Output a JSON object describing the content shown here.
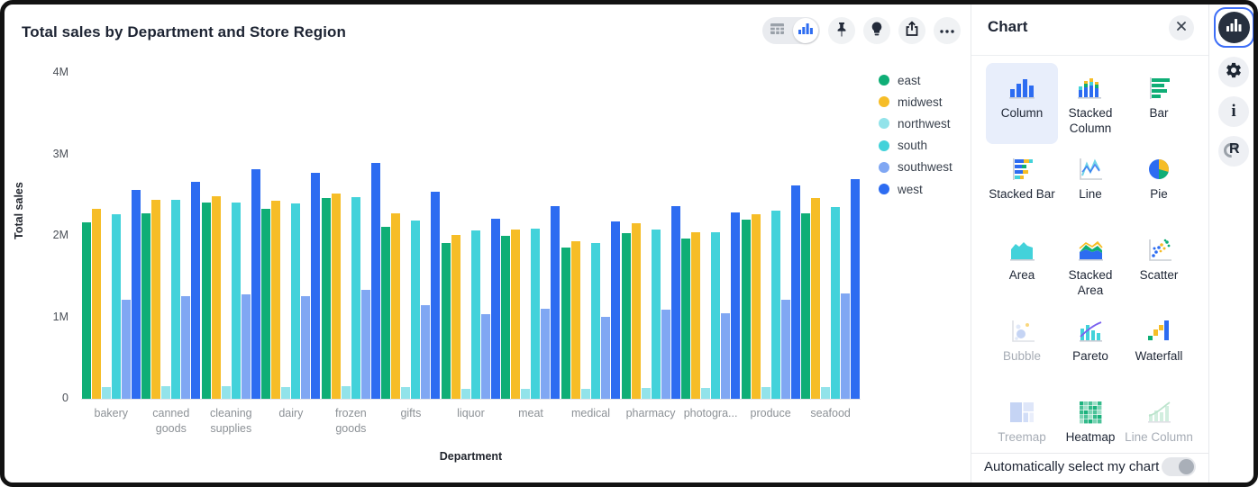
{
  "chart_header": {
    "title": "Total sales by Department and Store Region"
  },
  "toolbar": {
    "view_toggle": {
      "options": [
        "table-view",
        "chart-view"
      ],
      "selected": "chart-view"
    },
    "buttons": [
      "pin",
      "lightbulb",
      "share",
      "more-options"
    ]
  },
  "chart_data": {
    "type": "bar",
    "title": "Total sales by Department and Store Region",
    "xlabel": "Department",
    "ylabel": "Total sales",
    "unit": "millions",
    "ylim": [
      0,
      4
    ],
    "yticks": [
      "0",
      "1M",
      "2M",
      "3M",
      "4M"
    ],
    "grid": false,
    "legend_position": "right",
    "categories": [
      "bakery",
      "canned goods",
      "cleaning supplies",
      "dairy",
      "frozen goods",
      "gifts",
      "liquor",
      "meat",
      "medical",
      "pharmacy",
      "photogra...",
      "produce",
      "seafood"
    ],
    "series": [
      {
        "name": "east",
        "color": "#0fae76",
        "values": [
          2.17,
          2.28,
          2.41,
          2.33,
          2.46,
          2.11,
          1.91,
          2.0,
          1.86,
          2.03,
          1.97,
          2.2,
          2.28
        ]
      },
      {
        "name": "midwest",
        "color": "#f6bd27",
        "values": [
          2.33,
          2.44,
          2.49,
          2.43,
          2.52,
          2.28,
          2.01,
          2.08,
          1.93,
          2.15,
          2.04,
          2.26,
          2.46
        ]
      },
      {
        "name": "northwest",
        "color": "#92e3ea",
        "values": [
          0.14,
          0.15,
          0.16,
          0.14,
          0.15,
          0.14,
          0.12,
          0.12,
          0.12,
          0.13,
          0.13,
          0.14,
          0.14
        ]
      },
      {
        "name": "south",
        "color": "#43d2da",
        "values": [
          2.27,
          2.44,
          2.41,
          2.4,
          2.47,
          2.19,
          2.07,
          2.09,
          1.91,
          2.08,
          2.04,
          2.31,
          2.35
        ]
      },
      {
        "name": "southwest",
        "color": "#80a7f3",
        "values": [
          1.22,
          1.26,
          1.28,
          1.26,
          1.34,
          1.15,
          1.04,
          1.11,
          1.01,
          1.09,
          1.05,
          1.22,
          1.29
        ]
      },
      {
        "name": "west",
        "color": "#2d6cf1",
        "values": [
          2.56,
          2.66,
          2.82,
          2.77,
          2.89,
          2.54,
          2.21,
          2.37,
          2.18,
          2.37,
          2.29,
          2.62,
          2.7
        ]
      }
    ]
  },
  "panel": {
    "title": "Chart",
    "close_icon": "close-icon",
    "types": [
      {
        "label": "Column",
        "icon": "column-chart-icon",
        "state": "selected"
      },
      {
        "label": "Stacked Column",
        "icon": "stacked-column-chart-icon",
        "state": "enabled"
      },
      {
        "label": "Bar",
        "icon": "bar-chart-icon",
        "state": "enabled"
      },
      {
        "label": "Stacked Bar",
        "icon": "stacked-bar-chart-icon",
        "state": "enabled"
      },
      {
        "label": "Line",
        "icon": "line-chart-icon",
        "state": "enabled"
      },
      {
        "label": "Pie",
        "icon": "pie-chart-icon",
        "state": "enabled"
      },
      {
        "label": "Area",
        "icon": "area-chart-icon",
        "state": "enabled"
      },
      {
        "label": "Stacked Area",
        "icon": "stacked-area-chart-icon",
        "state": "enabled"
      },
      {
        "label": "Scatter",
        "icon": "scatter-chart-icon",
        "state": "enabled"
      },
      {
        "label": "Bubble",
        "icon": "bubble-chart-icon",
        "state": "disabled"
      },
      {
        "label": "Pareto",
        "icon": "pareto-chart-icon",
        "state": "enabled"
      },
      {
        "label": "Waterfall",
        "icon": "waterfall-chart-icon",
        "state": "enabled"
      },
      {
        "label": "Treemap",
        "icon": "treemap-chart-icon",
        "state": "disabled"
      },
      {
        "label": "Heatmap",
        "icon": "heatmap-chart-icon",
        "state": "enabled"
      },
      {
        "label": "Line Column",
        "icon": "line-column-chart-icon",
        "state": "disabled"
      }
    ],
    "footer": {
      "label": "Automatically select my chart",
      "toggle_state": "off"
    }
  },
  "rail": {
    "items": [
      "chart-panel",
      "settings",
      "info",
      "r-language"
    ]
  },
  "colors": {
    "accent_blue": "#2d6cf1",
    "selected_cell_bg": "#e8eefb",
    "rail_active_ring": "#3d6ef7"
  }
}
